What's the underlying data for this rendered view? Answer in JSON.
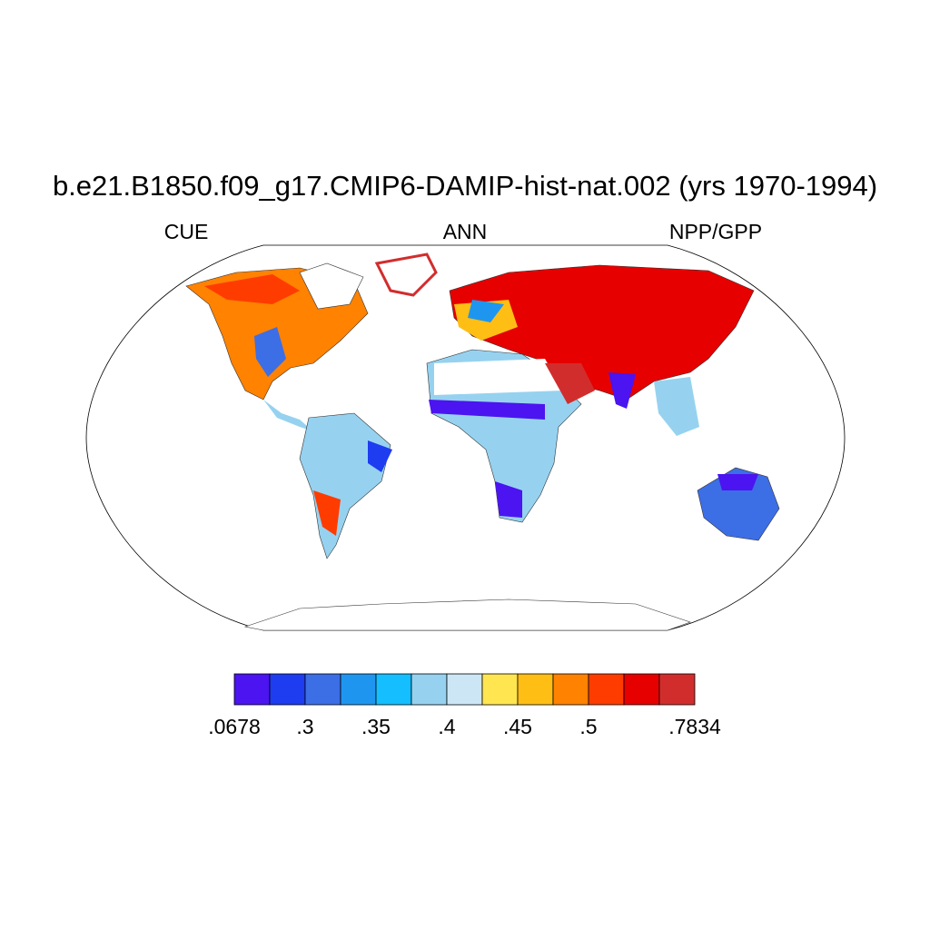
{
  "title": "b.e21.B1850.f09_g17.CMIP6-DAMIP-hist-nat.002 (yrs 1970-1994)",
  "left_label": "CUE",
  "center_label": "ANN",
  "right_label": "NPP/GPP",
  "colorbar": {
    "colors": [
      "#4b14f0",
      "#1e3cf0",
      "#3c6ee6",
      "#1e96f0",
      "#14beff",
      "#96d2f0",
      "#cde6f5",
      "#ffe650",
      "#ffbe14",
      "#ff8200",
      "#ff3c00",
      "#e60000",
      "#d22d2d"
    ],
    "labels": [
      {
        "value": 0.0678,
        "label": ".0678"
      },
      {
        "value": 0.3,
        "label": ".3"
      },
      {
        "value": 0.35,
        "label": ".35"
      },
      {
        "value": 0.4,
        "label": ".4"
      },
      {
        "value": 0.45,
        "label": ".45"
      },
      {
        "value": 0.5,
        "label": ".5"
      },
      {
        "value": 0.7834,
        "label": ".7834"
      }
    ]
  }
}
